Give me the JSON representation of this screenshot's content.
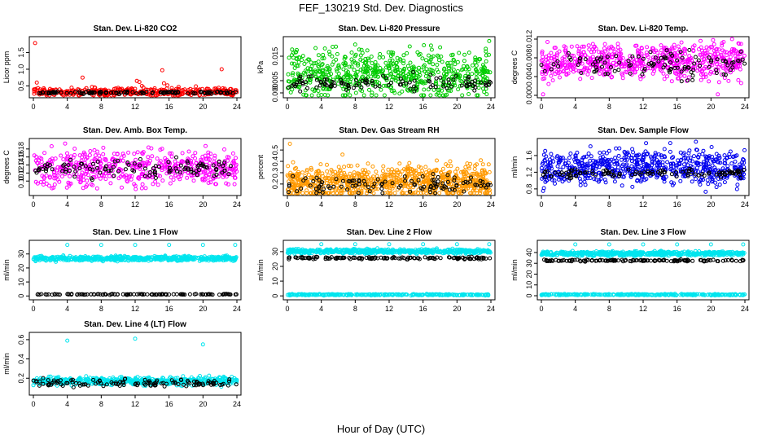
{
  "page": {
    "title": "FEF_130219  Std. Dev. Diagnostics",
    "xlabel": "Hour of Day (UTC)"
  },
  "chart_data": [
    {
      "type": "scatter",
      "title": "Stan. Dev. Li-820 CO2",
      "ylabel": "Licor ppm",
      "xlim": [
        0,
        24
      ],
      "ylim": [
        0.22,
        1.9
      ],
      "yticks": [
        "0.5",
        "1.0",
        "1.5"
      ],
      "ytick_values": [
        0.5,
        1.0,
        1.5
      ],
      "xticks": [
        "0",
        "4",
        "8",
        "12",
        "16",
        "20",
        "24"
      ],
      "series": [
        {
          "color": "#ff0000",
          "base": 0.32,
          "spread": 0.06,
          "count": 420,
          "outliers": [
            [
              0.2,
              1.78
            ],
            [
              0.4,
              0.6
            ],
            [
              5.8,
              0.75
            ],
            [
              12.2,
              0.65
            ],
            [
              12.5,
              0.62
            ],
            [
              15.4,
              0.58
            ],
            [
              15.8,
              0.52
            ],
            [
              15.2,
              0.97
            ],
            [
              22.2,
              1.0
            ],
            [
              12.8,
              0.5
            ],
            [
              4.5,
              0.45
            ]
          ]
        },
        {
          "color": "#000000",
          "base": 0.3,
          "spread": 0.02,
          "count": 120,
          "outliers": []
        }
      ]
    },
    {
      "type": "scatter",
      "title": "Stan. Dev. Li-820 Pressure",
      "ylabel": "kPa",
      "xlim": [
        0,
        24
      ],
      "ylim": [
        -0.001,
        0.022
      ],
      "yticks": [
        "0.000",
        "0.005",
        "0.015"
      ],
      "ytick_values": [
        0.0,
        0.005,
        0.015
      ],
      "xticks": [
        "0",
        "4",
        "8",
        "12",
        "16",
        "20",
        "24"
      ],
      "series": [
        {
          "color": "#00cc00",
          "base": 0.0075,
          "spread": 0.0045,
          "count": 650,
          "outliers": [
            [
              8.0,
              0.0198
            ],
            [
              16.1,
              0.0195
            ],
            [
              23.8,
              0.0212
            ],
            [
              0.4,
              0.0002
            ],
            [
              23.2,
              0.0004
            ]
          ]
        },
        {
          "color": "#000000",
          "base": 0.004,
          "spread": 0.0015,
          "count": 110,
          "outliers": []
        }
      ]
    },
    {
      "type": "scatter",
      "title": "Stan. Dev. Li-820 Temp.",
      "ylabel": "degrees C",
      "xlim": [
        0,
        24
      ],
      "ylim": [
        0,
        0.012
      ],
      "yticks": [
        "0.000",
        "0.004",
        "0.008",
        "0.012"
      ],
      "ytick_values": [
        0.0,
        0.004,
        0.008,
        0.012
      ],
      "xticks": [
        "0",
        "4",
        "8",
        "12",
        "16",
        "20",
        "24"
      ],
      "series": [
        {
          "color": "#ff00ff",
          "base": 0.0072,
          "spread": 0.0018,
          "count": 650,
          "outliers": [
            [
              0.2,
              0.0002
            ],
            [
              20.8,
              0.0002
            ]
          ]
        },
        {
          "color": "#000000",
          "base": 0.0068,
          "spread": 0.0013,
          "count": 110,
          "outliers": []
        }
      ]
    },
    {
      "type": "scatter",
      "title": "Stan. Dev. Amb. Box Temp.",
      "ylabel": "degrees C",
      "xlim": [
        0,
        24
      ],
      "ylim": [
        0.07,
        0.2
      ],
      "yticks": [
        "0.10",
        "0.12",
        "0.14",
        "0.16",
        "0.18"
      ],
      "ytick_values": [
        0.1,
        0.12,
        0.14,
        0.16,
        0.18
      ],
      "xticks": [
        "0",
        "4",
        "8",
        "12",
        "16",
        "20",
        "24"
      ],
      "series": [
        {
          "color": "#ff00ff",
          "base": 0.133,
          "spread": 0.022,
          "count": 520,
          "outliers": [
            [
              2.2,
              0.082
            ],
            [
              12.8,
              0.082
            ]
          ]
        },
        {
          "color": "#000000",
          "base": 0.132,
          "spread": 0.012,
          "count": 110,
          "outliers": []
        }
      ]
    },
    {
      "type": "scatter",
      "title": "Stan. Dev. Gas Stream RH",
      "ylabel": "percent",
      "xlim": [
        0,
        24
      ],
      "ylim": [
        0.12,
        0.58
      ],
      "yticks": [
        "0.2",
        "0.3",
        "0.4",
        "0.5"
      ],
      "ytick_values": [
        0.2,
        0.3,
        0.4,
        0.5
      ],
      "xticks": [
        "0",
        "4",
        "8",
        "12",
        "16",
        "20",
        "24"
      ],
      "series": [
        {
          "color": "#ff9900",
          "base": 0.22,
          "spread": 0.07,
          "count": 800,
          "outliers": [
            [
              0.3,
              0.555
            ],
            [
              6.5,
              0.46
            ],
            [
              19.2,
              0.4
            ]
          ]
        },
        {
          "color": "#000000",
          "base": 0.2,
          "spread": 0.04,
          "count": 110,
          "outliers": []
        }
      ]
    },
    {
      "type": "scatter",
      "title": "Stan. Dev. Sample Flow",
      "ylabel": "ml/min",
      "xlim": [
        0,
        24
      ],
      "ylim": [
        0.7,
        1.95
      ],
      "yticks": [
        "0.8",
        "1.2",
        "1.6"
      ],
      "ytick_values": [
        0.8,
        1.2,
        1.6
      ],
      "xticks": [
        "0",
        "4",
        "8",
        "12",
        "16",
        "20",
        "24"
      ],
      "series": [
        {
          "color": "#0000ee",
          "base": 1.32,
          "spread": 0.2,
          "count": 650,
          "outliers": [
            [
              0.2,
              0.75
            ],
            [
              15.2,
              1.9
            ],
            [
              0.3,
              0.82
            ]
          ]
        },
        {
          "color": "#000000",
          "base": 1.18,
          "spread": 0.05,
          "count": 110,
          "outliers": []
        }
      ]
    },
    {
      "type": "scatter",
      "title": "Stan. Dev. Line 1 Flow",
      "ylabel": "ml/min",
      "xlim": [
        0,
        24
      ],
      "ylim": [
        -1,
        38
      ],
      "yticks": [
        "0",
        "10",
        "20",
        "30"
      ],
      "ytick_values": [
        0,
        10,
        20,
        30
      ],
      "xticks": [
        "0",
        "4",
        "8",
        "12",
        "16",
        "20",
        "24"
      ],
      "series": [
        {
          "color": "#00e5ee",
          "base": 26.8,
          "spread": 0.8,
          "count": 550,
          "outliers": [
            [
              4.0,
              36.5
            ],
            [
              8.0,
              36.5
            ],
            [
              12.0,
              36.5
            ],
            [
              16.0,
              36.5
            ],
            [
              20.0,
              36.5
            ],
            [
              23.8,
              36.5
            ]
          ]
        },
        {
          "color": "#000000",
          "base": 1.1,
          "spread": 0.15,
          "count": 120,
          "outliers": []
        }
      ]
    },
    {
      "type": "scatter",
      "title": "Stan. Dev. Line 2 Flow",
      "ylabel": "ml/min",
      "xlim": [
        0,
        24
      ],
      "ylim": [
        -1,
        36
      ],
      "yticks": [
        "0",
        "10",
        "20",
        "30"
      ],
      "ytick_values": [
        0,
        10,
        20,
        30
      ],
      "xticks": [
        "0",
        "4",
        "8",
        "12",
        "16",
        "20",
        "24"
      ],
      "series": [
        {
          "color": "#00e5ee",
          "base": 30.2,
          "spread": 0.7,
          "count": 550,
          "outliers": [
            [
              4.0,
              35.0
            ],
            [
              8.0,
              35.0
            ],
            [
              12.0,
              35.0
            ],
            [
              16.0,
              35.0
            ],
            [
              20.0,
              35.0
            ],
            [
              23.8,
              35.0
            ]
          ]
        },
        {
          "color": "#00e5ee",
          "base": 0.8,
          "spread": 0.2,
          "count": 300,
          "outliers": []
        },
        {
          "color": "#000000",
          "base": 25.6,
          "spread": 0.4,
          "count": 130,
          "outliers": []
        }
      ]
    },
    {
      "type": "scatter",
      "title": "Stan. Dev. Line 3 Flow",
      "ylabel": "ml/min",
      "xlim": [
        0,
        24
      ],
      "ylim": [
        -1.5,
        49
      ],
      "yticks": [
        "0",
        "10",
        "20",
        "30",
        "40"
      ],
      "ytick_values": [
        0,
        10,
        20,
        30,
        40
      ],
      "xticks": [
        "0",
        "4",
        "8",
        "12",
        "16",
        "20",
        "24"
      ],
      "series": [
        {
          "color": "#00e5ee",
          "base": 39.0,
          "spread": 1.0,
          "count": 550,
          "outliers": [
            [
              4.0,
              47.5
            ],
            [
              8.0,
              47.5
            ],
            [
              12.0,
              47.5
            ],
            [
              16.0,
              47.5
            ],
            [
              20.0,
              47.5
            ],
            [
              23.8,
              47.5
            ]
          ]
        },
        {
          "color": "#00e5ee",
          "base": 1.0,
          "spread": 0.3,
          "count": 300,
          "outliers": []
        },
        {
          "color": "#000000",
          "base": 32.6,
          "spread": 0.4,
          "count": 130,
          "outliers": []
        }
      ]
    },
    {
      "type": "scatter",
      "title": "Stan. Dev. Line 4 (LT) Flow",
      "ylabel": "ml/min",
      "xlim": [
        0,
        24
      ],
      "ylim": [
        0.05,
        0.65
      ],
      "yticks": [
        "0.2",
        "0.4",
        "0.6"
      ],
      "ytick_values": [
        0.2,
        0.4,
        0.6
      ],
      "xticks": [
        "0",
        "4",
        "8",
        "12",
        "16",
        "20",
        "24"
      ],
      "series": [
        {
          "color": "#00e5ee",
          "base": 0.17,
          "spread": 0.02,
          "count": 520,
          "outliers": [
            [
              4.0,
              0.59
            ],
            [
              12.0,
              0.61
            ],
            [
              20.0,
              0.55
            ]
          ]
        },
        {
          "color": "#000000",
          "base": 0.15,
          "spread": 0.02,
          "count": 120,
          "outliers": []
        }
      ]
    }
  ]
}
